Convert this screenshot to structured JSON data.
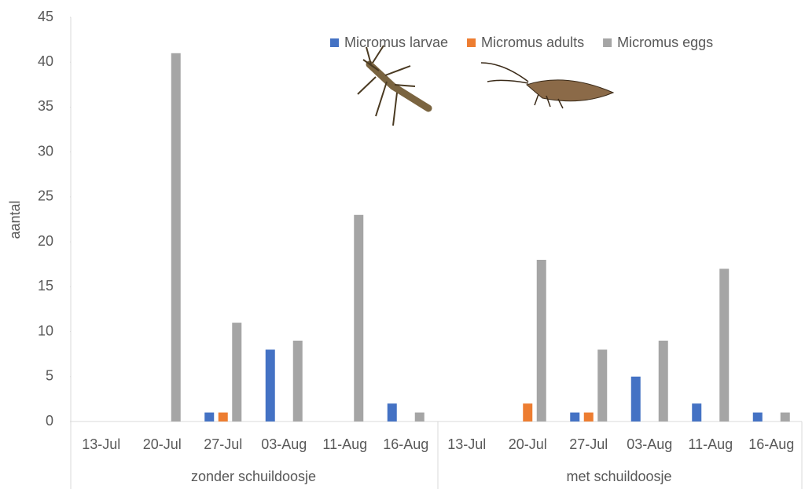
{
  "chart_data": {
    "type": "bar",
    "y_label": "aantal",
    "groups": [
      {
        "label": "zonder schuildoosje",
        "categories": [
          "13-Jul",
          "20-Jul",
          "27-Jul",
          "03-Aug",
          "11-Aug",
          "16-Aug"
        ]
      },
      {
        "label": "met schuildoosje",
        "categories": [
          "13-Jul",
          "20-Jul",
          "27-Jul",
          "03-Aug",
          "11-Aug",
          "16-Aug"
        ]
      }
    ],
    "series": [
      {
        "name": "Micromus larvae",
        "color": "#4472c4",
        "values": [
          0,
          0,
          1,
          8,
          0,
          2,
          0,
          0,
          1,
          5,
          2,
          1
        ]
      },
      {
        "name": "Micromus adults",
        "color": "#ed7d31",
        "values": [
          0,
          0,
          1,
          0,
          0,
          0,
          0,
          2,
          1,
          0,
          0,
          0
        ]
      },
      {
        "name": "Micromus eggs",
        "color": "#a5a5a5",
        "values": [
          0,
          41,
          11,
          9,
          23,
          1,
          0,
          18,
          8,
          9,
          17,
          1
        ]
      }
    ],
    "ylim": [
      0,
      45
    ],
    "yticks": [
      0,
      5,
      10,
      15,
      20,
      25,
      30,
      35,
      40,
      45
    ]
  }
}
